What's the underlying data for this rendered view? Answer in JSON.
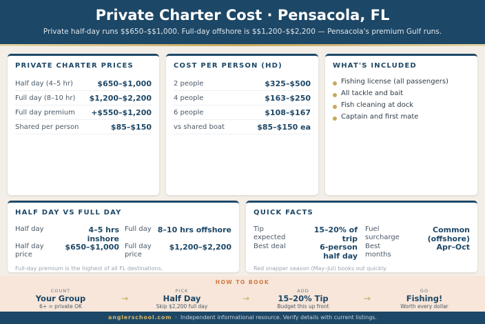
{
  "header": {
    "title": "Private Charter Cost · Pensacola, FL",
    "subtitle": "Private half-day runs $$650–$$1,000. Full-day offshore is $$1,200–$$2,200 — Pensacola's premium Gulf runs."
  },
  "prices": {
    "title": "PRIVATE CHARTER PRICES",
    "rows": [
      [
        "Half day (4–5 hr)",
        "$650–$1,000"
      ],
      [
        "Full day (8–10 hr)",
        "$1,200–$2,200"
      ],
      [
        "Full day premium",
        "+$550–$1,200"
      ],
      [
        "Shared per person",
        "$85–$150"
      ]
    ]
  },
  "per_person": {
    "title": "COST PER PERSON (HD)",
    "rows": [
      [
        "2 people",
        "$325–$500"
      ],
      [
        "4 people",
        "$163–$250"
      ],
      [
        "6 people",
        "$108–$167"
      ],
      [
        "vs shared boat",
        "$85–$150 ea"
      ]
    ]
  },
  "included": {
    "title": "WHAT'S INCLUDED",
    "items": [
      "Fishing license (all passengers)",
      "All tackle and bait",
      "Fish cleaning at dock",
      "Captain and first mate"
    ]
  },
  "half_vs_full": {
    "title": "HALF DAY VS FULL DAY",
    "rows": [
      [
        "Half day",
        "4–5 hrs inshore",
        "Full day",
        "8–10 hrs offshore"
      ],
      [
        "Half day price",
        "$650–$1,000",
        "Full day price",
        "$1,200–$2,200"
      ]
    ],
    "note": "Full-day premium is the highest of all FL destinations."
  },
  "quick_facts": {
    "title": "QUICK FACTS",
    "rows": [
      [
        "Tip expected",
        "15–20% of trip",
        "Fuel surcharge",
        "Common (offshore)"
      ],
      [
        "Best deal",
        "6-person half day",
        "Best months",
        "Apr–Oct"
      ]
    ],
    "note": "Red snapper season (May–Jul) books out quickly."
  },
  "how_to_book": {
    "title": "HOW TO BOOK",
    "steps": [
      {
        "kicker": "COUNT",
        "title": "Your Group",
        "sub": "6+ = private OK"
      },
      {
        "kicker": "PICK",
        "title": "Half Day",
        "sub": "Skip $2,200 full day"
      },
      {
        "kicker": "ADD",
        "title": "15–20% Tip",
        "sub": "Budget this up front"
      },
      {
        "kicker": "GO",
        "title": "Fishing!",
        "sub": "Worth every dollar"
      }
    ]
  },
  "footer": {
    "brand": "anglerschool.com",
    "text": "Independent informational resource. Verify details with current listings."
  }
}
